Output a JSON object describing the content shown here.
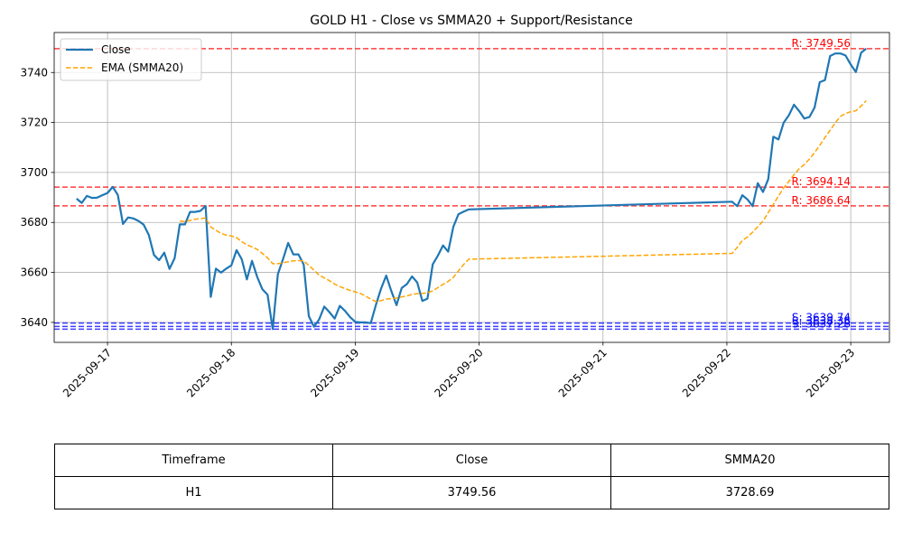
{
  "chart_data": {
    "type": "line",
    "title": "GOLD H1 - Close vs SMMA20 + Support/Resistance",
    "xlabel": "",
    "ylabel": "",
    "xlim": [
      "2025-09-16T13:40",
      "2025-09-23T07:30"
    ],
    "ylim": [
      3632,
      3756
    ],
    "x_ticks": [
      "2025-09-17",
      "2025-09-18",
      "2025-09-19",
      "2025-09-20",
      "2025-09-21",
      "2025-09-22",
      "2025-09-23"
    ],
    "y_ticks": [
      3640,
      3660,
      3680,
      3700,
      3720,
      3740
    ],
    "grid": true,
    "legend": "top-left",
    "series": [
      {
        "name": "Close",
        "color": "#1f77b4",
        "style": "solid",
        "points": [
          [
            "2025-09-16T18:00",
            3689.5
          ],
          [
            "2025-09-16T19:00",
            3687.8
          ],
          [
            "2025-09-16T20:00",
            3690.6
          ],
          [
            "2025-09-16T21:00",
            3689.8
          ],
          [
            "2025-09-16T22:00",
            3689.9
          ],
          [
            "2025-09-16T23:00",
            3690.9
          ],
          [
            "2025-09-17T00:00",
            3691.8
          ],
          [
            "2025-09-17T01:00",
            3694.2
          ],
          [
            "2025-09-17T02:00",
            3691.0
          ],
          [
            "2025-09-17T03:00",
            3679.4
          ],
          [
            "2025-09-17T04:00",
            3682.0
          ],
          [
            "2025-09-17T05:00",
            3681.6
          ],
          [
            "2025-09-17T06:00",
            3680.6
          ],
          [
            "2025-09-17T07:00",
            3679.1
          ],
          [
            "2025-09-17T08:00",
            3675.0
          ],
          [
            "2025-09-17T09:00",
            3667.0
          ],
          [
            "2025-09-17T10:00",
            3664.9
          ],
          [
            "2025-09-17T11:00",
            3667.9
          ],
          [
            "2025-09-17T12:00",
            3661.4
          ],
          [
            "2025-09-17T13:00",
            3665.7
          ],
          [
            "2025-09-17T14:00",
            3679.2
          ],
          [
            "2025-09-17T15:00",
            3679.2
          ],
          [
            "2025-09-17T16:00",
            3684.2
          ],
          [
            "2025-09-17T17:00",
            3684.2
          ],
          [
            "2025-09-17T18:00",
            3684.6
          ],
          [
            "2025-09-17T19:00",
            3686.6
          ],
          [
            "2025-09-17T20:00",
            3650.2
          ],
          [
            "2025-09-17T21:00",
            3661.5
          ],
          [
            "2025-09-17T22:00",
            3659.9
          ],
          [
            "2025-09-17T23:00",
            3661.5
          ],
          [
            "2025-09-18T00:00",
            3662.8
          ],
          [
            "2025-09-18T01:00",
            3668.9
          ],
          [
            "2025-09-18T02:00",
            3665.3
          ],
          [
            "2025-09-18T03:00",
            3657.2
          ],
          [
            "2025-09-18T04:00",
            3664.6
          ],
          [
            "2025-09-18T05:00",
            3658.2
          ],
          [
            "2025-09-18T06:00",
            3653.3
          ],
          [
            "2025-09-18T07:00",
            3651.1
          ],
          [
            "2025-09-18T08:00",
            3637.3
          ],
          [
            "2025-09-18T09:00",
            3659.3
          ],
          [
            "2025-09-18T10:00",
            3665.3
          ],
          [
            "2025-09-18T11:00",
            3671.8
          ],
          [
            "2025-09-18T12:00",
            3667.2
          ],
          [
            "2025-09-18T13:00",
            3667.2
          ],
          [
            "2025-09-18T14:00",
            3663.2
          ],
          [
            "2025-09-18T15:00",
            3642.5
          ],
          [
            "2025-09-18T16:00",
            3638.3
          ],
          [
            "2025-09-18T17:00",
            3641.2
          ],
          [
            "2025-09-18T18:00",
            3646.3
          ],
          [
            "2025-09-18T19:00",
            3644.1
          ],
          [
            "2025-09-18T20:00",
            3641.5
          ],
          [
            "2025-09-18T21:00",
            3646.6
          ],
          [
            "2025-09-18T22:00",
            3644.6
          ],
          [
            "2025-09-18T23:00",
            3642.1
          ],
          [
            "2025-09-19T00:00",
            3640.2
          ],
          [
            "2025-09-19T01:00",
            3640.0
          ],
          [
            "2025-09-19T02:00",
            3640.0
          ],
          [
            "2025-09-19T03:00",
            3639.7
          ],
          [
            "2025-09-19T04:00",
            3647.0
          ],
          [
            "2025-09-19T05:00",
            3653.5
          ],
          [
            "2025-09-19T06:00",
            3658.7
          ],
          [
            "2025-09-19T07:00",
            3652.5
          ],
          [
            "2025-09-19T08:00",
            3646.9
          ],
          [
            "2025-09-19T09:00",
            3653.8
          ],
          [
            "2025-09-19T10:00",
            3655.3
          ],
          [
            "2025-09-19T11:00",
            3658.4
          ],
          [
            "2025-09-19T12:00",
            3656.0
          ],
          [
            "2025-09-19T13:00",
            3648.6
          ],
          [
            "2025-09-19T14:00",
            3649.5
          ],
          [
            "2025-09-19T15:00",
            3663.2
          ],
          [
            "2025-09-19T16:00",
            3666.7
          ],
          [
            "2025-09-19T17:00",
            3670.8
          ],
          [
            "2025-09-19T18:00",
            3668.3
          ],
          [
            "2025-09-19T19:00",
            3678.2
          ],
          [
            "2025-09-19T20:00",
            3683.3
          ],
          [
            "2025-09-19T21:00",
            3684.3
          ],
          [
            "2025-09-19T22:00",
            3685.2
          ],
          [
            "2025-09-22T01:00",
            3688.3
          ],
          [
            "2025-09-22T02:00",
            3686.5
          ],
          [
            "2025-09-22T03:00",
            3690.9
          ],
          [
            "2025-09-22T04:00",
            3689.2
          ],
          [
            "2025-09-22T05:00",
            3686.5
          ],
          [
            "2025-09-22T06:00",
            3695.7
          ],
          [
            "2025-09-22T07:00",
            3692.2
          ],
          [
            "2025-09-22T08:00",
            3697.2
          ],
          [
            "2025-09-22T09:00",
            3714.3
          ],
          [
            "2025-09-22T10:00",
            3713.2
          ],
          [
            "2025-09-22T11:00",
            3719.9
          ],
          [
            "2025-09-22T12:00",
            3722.8
          ],
          [
            "2025-09-22T13:00",
            3727.1
          ],
          [
            "2025-09-22T14:00",
            3724.6
          ],
          [
            "2025-09-22T15:00",
            3721.6
          ],
          [
            "2025-09-22T16:00",
            3722.2
          ],
          [
            "2025-09-22T17:00",
            3726.0
          ],
          [
            "2025-09-22T18:00",
            3736.1
          ],
          [
            "2025-09-22T19:00",
            3737.0
          ],
          [
            "2025-09-22T20:00",
            3746.6
          ],
          [
            "2025-09-22T21:00",
            3747.6
          ],
          [
            "2025-09-22T22:00",
            3747.6
          ],
          [
            "2025-09-22T23:00",
            3746.8
          ],
          [
            "2025-09-23T00:00",
            3743.2
          ],
          [
            "2025-09-23T01:00",
            3740.2
          ],
          [
            "2025-09-23T02:00",
            3747.9
          ],
          [
            "2025-09-23T03:00",
            3749.56
          ]
        ]
      },
      {
        "name": "EMA (SMMA20)",
        "color": "#ffa500",
        "style": "dashed",
        "points": [
          [
            "2025-09-17T14:00",
            3680.6
          ],
          [
            "2025-09-17T15:00",
            3680.4
          ],
          [
            "2025-09-17T16:00",
            3680.8
          ],
          [
            "2025-09-17T17:00",
            3681.3
          ],
          [
            "2025-09-17T18:00",
            3681.5
          ],
          [
            "2025-09-17T19:00",
            3681.8
          ],
          [
            "2025-09-17T20:00",
            3678.2
          ],
          [
            "2025-09-17T21:00",
            3676.9
          ],
          [
            "2025-09-17T22:00",
            3675.6
          ],
          [
            "2025-09-17T23:00",
            3674.9
          ],
          [
            "2025-09-18T00:00",
            3674.6
          ],
          [
            "2025-09-18T01:00",
            3673.9
          ],
          [
            "2025-09-18T02:00",
            3672.3
          ],
          [
            "2025-09-18T03:00",
            3671.0
          ],
          [
            "2025-09-18T04:00",
            3670.2
          ],
          [
            "2025-09-18T05:00",
            3669.2
          ],
          [
            "2025-09-18T06:00",
            3667.6
          ],
          [
            "2025-09-18T07:00",
            3665.8
          ],
          [
            "2025-09-18T08:00",
            3663.5
          ],
          [
            "2025-09-18T09:00",
            3663.5
          ],
          [
            "2025-09-18T10:00",
            3663.8
          ],
          [
            "2025-09-18T11:00",
            3664.3
          ],
          [
            "2025-09-18T12:00",
            3664.6
          ],
          [
            "2025-09-18T13:00",
            3664.7
          ],
          [
            "2025-09-18T14:00",
            3664.6
          ],
          [
            "2025-09-18T15:00",
            3662.8
          ],
          [
            "2025-09-18T16:00",
            3660.9
          ],
          [
            "2025-09-18T17:00",
            3658.9
          ],
          [
            "2025-09-18T18:00",
            3657.8
          ],
          [
            "2025-09-18T19:00",
            3656.7
          ],
          [
            "2025-09-18T20:00",
            3655.3
          ],
          [
            "2025-09-18T21:00",
            3654.3
          ],
          [
            "2025-09-18T22:00",
            3653.6
          ],
          [
            "2025-09-18T23:00",
            3652.8
          ],
          [
            "2025-09-19T00:00",
            3652.2
          ],
          [
            "2025-09-19T01:00",
            3651.6
          ],
          [
            "2025-09-19T02:00",
            3650.5
          ],
          [
            "2025-09-19T03:00",
            3649.3
          ],
          [
            "2025-09-19T04:00",
            3648.3
          ],
          [
            "2025-09-19T05:00",
            3648.7
          ],
          [
            "2025-09-19T06:00",
            3649.3
          ],
          [
            "2025-09-19T07:00",
            3649.5
          ],
          [
            "2025-09-19T08:00",
            3649.7
          ],
          [
            "2025-09-19T09:00",
            3650.2
          ],
          [
            "2025-09-19T10:00",
            3650.6
          ],
          [
            "2025-09-19T11:00",
            3651.2
          ],
          [
            "2025-09-19T12:00",
            3651.5
          ],
          [
            "2025-09-19T13:00",
            3651.6
          ],
          [
            "2025-09-19T14:00",
            3651.8
          ],
          [
            "2025-09-19T15:00",
            3652.6
          ],
          [
            "2025-09-19T16:00",
            3653.9
          ],
          [
            "2025-09-19T17:00",
            3655.2
          ],
          [
            "2025-09-19T18:00",
            3656.4
          ],
          [
            "2025-09-19T19:00",
            3658.0
          ],
          [
            "2025-09-19T20:00",
            3660.6
          ],
          [
            "2025-09-19T21:00",
            3663.2
          ],
          [
            "2025-09-19T22:00",
            3665.3
          ],
          [
            "2025-09-22T01:00",
            3667.6
          ],
          [
            "2025-09-22T02:00",
            3670.0
          ],
          [
            "2025-09-22T03:00",
            3672.8
          ],
          [
            "2025-09-22T04:00",
            3674.2
          ],
          [
            "2025-09-22T05:00",
            3676.1
          ],
          [
            "2025-09-22T06:00",
            3678.3
          ],
          [
            "2025-09-22T07:00",
            3680.5
          ],
          [
            "2025-09-22T08:00",
            3683.9
          ],
          [
            "2025-09-22T09:00",
            3687.2
          ],
          [
            "2025-09-22T10:00",
            3690.6
          ],
          [
            "2025-09-22T11:00",
            3693.8
          ],
          [
            "2025-09-22T12:00",
            3696.4
          ],
          [
            "2025-09-22T13:00",
            3699.1
          ],
          [
            "2025-09-22T14:00",
            3701.5
          ],
          [
            "2025-09-22T15:00",
            3703.2
          ],
          [
            "2025-09-22T16:00",
            3705.4
          ],
          [
            "2025-09-22T17:00",
            3708.0
          ],
          [
            "2025-09-22T18:00",
            3710.8
          ],
          [
            "2025-09-22T19:00",
            3714.0
          ],
          [
            "2025-09-22T20:00",
            3716.9
          ],
          [
            "2025-09-22T21:00",
            3719.9
          ],
          [
            "2025-09-22T22:00",
            3722.4
          ],
          [
            "2025-09-22T23:00",
            3723.6
          ],
          [
            "2025-09-23T00:00",
            3724.3
          ],
          [
            "2025-09-23T01:00",
            3724.7
          ],
          [
            "2025-09-23T02:00",
            3726.6
          ],
          [
            "2025-09-23T03:00",
            3728.69
          ]
        ]
      }
    ],
    "levels": [
      {
        "kind": "resistance",
        "value": 3749.56,
        "label": "R: 3749.56",
        "color": "#ff0000"
      },
      {
        "kind": "resistance",
        "value": 3694.14,
        "label": "R: 3694.14",
        "color": "#ff0000"
      },
      {
        "kind": "resistance",
        "value": 3686.64,
        "label": "R: 3686.64",
        "color": "#ff0000"
      },
      {
        "kind": "support",
        "value": 3639.74,
        "label": "S: 3639.74",
        "color": "#0000ff"
      },
      {
        "kind": "support",
        "value": 3638.36,
        "label": "S: 3638.36",
        "color": "#0000ff"
      },
      {
        "kind": "support",
        "value": 3637.28,
        "label": "S: 3637.28",
        "color": "#0000ff"
      }
    ]
  },
  "table": {
    "headers": [
      "Timeframe",
      "Close",
      "SMMA20"
    ],
    "rows": [
      [
        "H1",
        "3749.56",
        "3728.69"
      ]
    ]
  }
}
